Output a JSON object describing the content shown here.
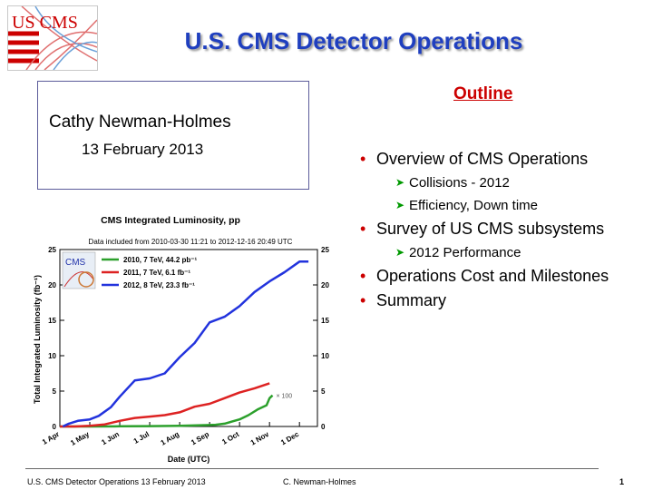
{
  "slide": {
    "title": "U.S. CMS Detector Operations",
    "logo_text": "US CMS"
  },
  "author": {
    "name": "Cathy Newman-Holmes",
    "date": "13 February 2013"
  },
  "outline": {
    "heading": "Outline",
    "items": [
      {
        "level": 1,
        "text": "Overview of CMS Operations"
      },
      {
        "level": 2,
        "text": "Collisions - 2012"
      },
      {
        "level": 2,
        "text": "Efficiency, Down time"
      },
      {
        "level": 1,
        "text": "Survey of US CMS subsystems"
      },
      {
        "level": 2,
        "text": "2012 Performance"
      },
      {
        "level": 1,
        "text": "Operations Cost and Milestones"
      },
      {
        "level": 1,
        "text": "Summary"
      }
    ]
  },
  "chart_data": {
    "type": "line",
    "title": "CMS Integrated Luminosity, pp",
    "subtitle": "Data included from 2010-03-30 11:21 to 2012-12-16 20:49 UTC",
    "xlabel": "Date (UTC)",
    "ylabel": "Total Integrated Luminosity (fb⁻¹)",
    "x_ticks": [
      "1 Apr",
      "1 May",
      "1 Jun",
      "1 Jul",
      "1 Aug",
      "1 Sep",
      "1 Oct",
      "1 Nov",
      "1 Dec"
    ],
    "y_ticks": [
      0,
      5,
      10,
      15,
      20,
      25
    ],
    "ylim": [
      0,
      25
    ],
    "legend_placement": "top-left",
    "annotation": "× 100",
    "logo_text": "CMS",
    "colors": {
      "2010": "#2ca02c",
      "2011": "#dd2222",
      "2012": "#2233dd"
    },
    "series": [
      {
        "name": "2010, 7 TeV, 44.2 pb⁻¹",
        "color": "#2ca02c",
        "x": [
          0,
          1,
          2,
          3,
          4,
          5,
          5.2,
          5.5,
          6,
          6.3,
          6.6,
          6.9,
          7.0,
          7.1
        ],
        "y": [
          0,
          0,
          0.02,
          0.05,
          0.1,
          0.2,
          0.25,
          0.4,
          1.0,
          1.6,
          2.4,
          3.0,
          4.0,
          4.4
        ]
      },
      {
        "name": "2011, 7 TeV, 6.1 fb⁻¹",
        "color": "#dd2222",
        "x": [
          0,
          0.5,
          1,
          1.5,
          2,
          2.5,
          3,
          3.5,
          4,
          4.5,
          5,
          5.5,
          6,
          6.5,
          7.0
        ],
        "y": [
          0,
          0,
          0.1,
          0.3,
          0.8,
          1.2,
          1.4,
          1.6,
          2.0,
          2.8,
          3.2,
          4.0,
          4.8,
          5.4,
          6.1
        ]
      },
      {
        "name": "2012, 8 TeV, 23.3 fb⁻¹",
        "color": "#2233dd",
        "x": [
          0.1,
          0.3,
          0.6,
          1.0,
          1.3,
          1.7,
          2.0,
          2.5,
          3.0,
          3.5,
          4.0,
          4.5,
          5.0,
          5.5,
          6.0,
          6.5,
          7.0,
          7.5,
          8.0,
          8.3
        ],
        "y": [
          0,
          0.4,
          0.8,
          1.0,
          1.5,
          2.7,
          4.2,
          6.5,
          6.8,
          7.5,
          9.8,
          11.8,
          14.7,
          15.5,
          17.0,
          19.0,
          20.5,
          21.8,
          23.3,
          23.3
        ]
      }
    ]
  },
  "footer": {
    "left": "U.S. CMS Detector Operations 13 February 2013",
    "center": "C. Newman-Holmes",
    "page": "1"
  }
}
